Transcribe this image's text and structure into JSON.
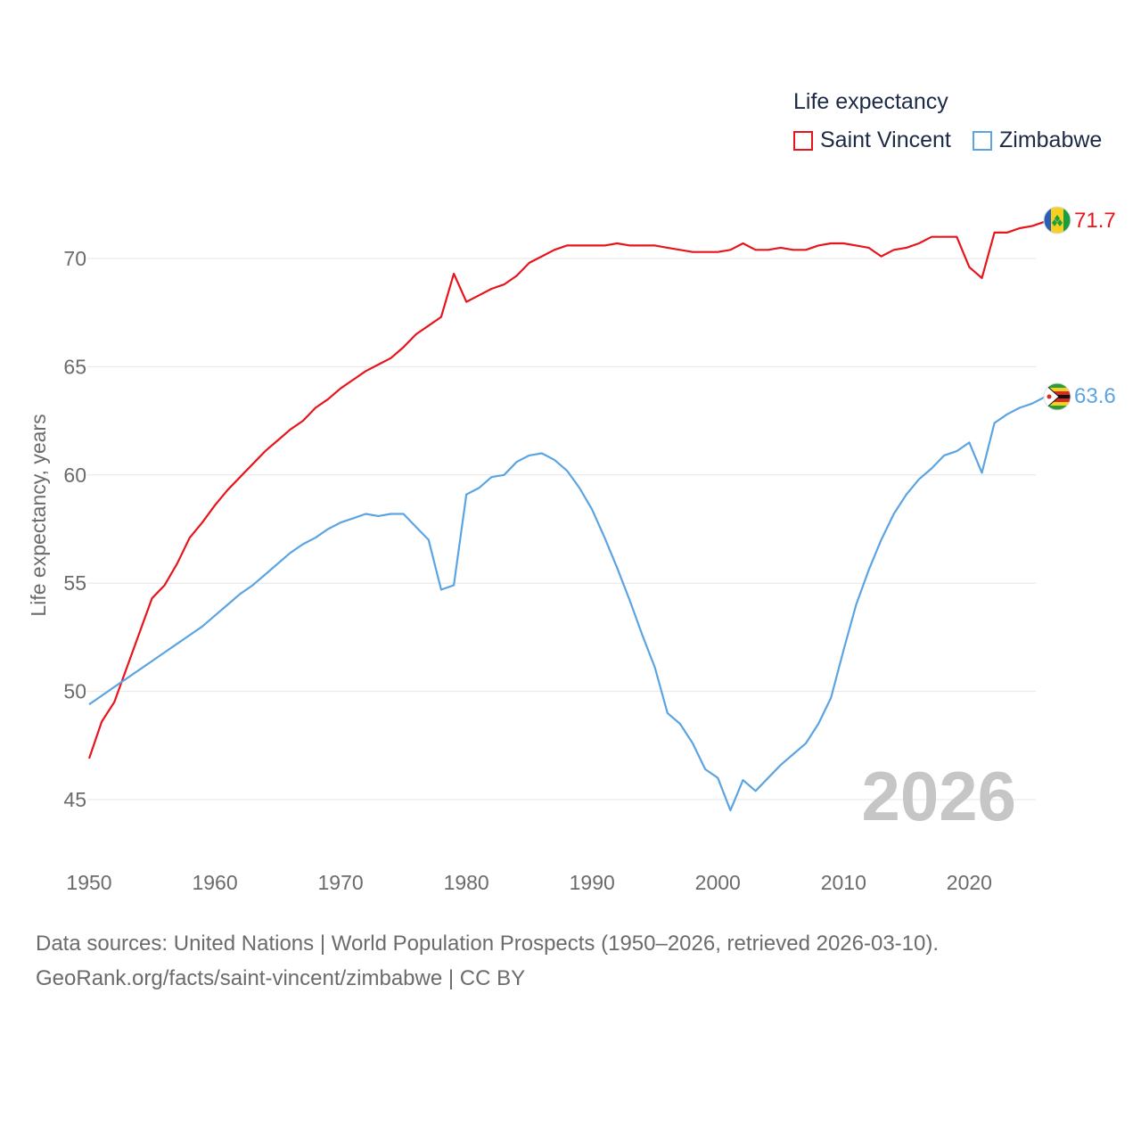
{
  "legend": {
    "title": "Life expectancy",
    "entries": [
      {
        "label": "Saint Vincent",
        "color": "#e8141b"
      },
      {
        "label": "Zimbabwe",
        "color": "#5ba4e3"
      }
    ]
  },
  "year_watermark": "2026",
  "end_labels": {
    "saint_vincent": "71.7",
    "zimbabwe": "63.6"
  },
  "footer": {
    "line1": "Data sources: United Nations | World Population Prospects (1950–2026, retrieved 2026-03-10).",
    "line2": "GeoRank.org/facts/saint-vincent/zimbabwe | CC BY"
  },
  "chart_data": {
    "type": "line",
    "title": "Life expectancy",
    "xlabel": "",
    "ylabel": "Life expectancy, years",
    "xlim": [
      1950,
      2026
    ],
    "ylim": [
      44,
      72.5
    ],
    "x_ticks": [
      1950,
      1960,
      1970,
      1980,
      1990,
      2000,
      2010,
      2020
    ],
    "y_ticks": [
      45,
      50,
      55,
      60,
      65,
      70
    ],
    "grid": true,
    "x": [
      1950,
      1951,
      1952,
      1953,
      1954,
      1955,
      1956,
      1957,
      1958,
      1959,
      1960,
      1961,
      1962,
      1963,
      1964,
      1965,
      1966,
      1967,
      1968,
      1969,
      1970,
      1971,
      1972,
      1973,
      1974,
      1975,
      1976,
      1977,
      1978,
      1979,
      1980,
      1981,
      1982,
      1983,
      1984,
      1985,
      1986,
      1987,
      1988,
      1989,
      1990,
      1991,
      1992,
      1993,
      1994,
      1995,
      1996,
      1997,
      1998,
      1999,
      2000,
      2001,
      2002,
      2003,
      2004,
      2005,
      2006,
      2007,
      2008,
      2009,
      2010,
      2011,
      2012,
      2013,
      2014,
      2015,
      2016,
      2017,
      2018,
      2019,
      2020,
      2021,
      2022,
      2023,
      2024,
      2025,
      2026
    ],
    "series": [
      {
        "name": "Saint Vincent",
        "color": "#e8141b",
        "values": [
          46.9,
          48.6,
          49.5,
          51.1,
          52.7,
          54.3,
          54.9,
          55.9,
          57.1,
          57.8,
          58.6,
          59.3,
          59.9,
          60.5,
          61.1,
          61.6,
          62.1,
          62.5,
          63.1,
          63.5,
          64.0,
          64.4,
          64.8,
          65.1,
          65.4,
          65.9,
          66.5,
          66.9,
          67.3,
          69.3,
          68.0,
          68.3,
          68.6,
          68.8,
          69.2,
          69.8,
          70.1,
          70.4,
          70.6,
          70.6,
          70.6,
          70.6,
          70.7,
          70.6,
          70.6,
          70.6,
          70.5,
          70.4,
          70.3,
          70.3,
          70.3,
          70.4,
          70.7,
          70.4,
          70.4,
          70.5,
          70.4,
          70.4,
          70.6,
          70.7,
          70.7,
          70.6,
          70.5,
          70.1,
          70.4,
          70.5,
          70.7,
          71.0,
          71.0,
          71.0,
          69.6,
          69.1,
          71.2,
          71.2,
          71.4,
          71.5,
          71.7
        ]
      },
      {
        "name": "Zimbabwe",
        "color": "#5ba4e3",
        "values": [
          49.4,
          49.8,
          50.2,
          50.6,
          51.0,
          51.4,
          51.8,
          52.2,
          52.6,
          53.0,
          53.5,
          54.0,
          54.5,
          54.9,
          55.4,
          55.9,
          56.4,
          56.8,
          57.1,
          57.5,
          57.8,
          58.0,
          58.2,
          58.1,
          58.2,
          58.2,
          57.6,
          57.0,
          54.7,
          54.9,
          59.1,
          59.4,
          59.9,
          60.0,
          60.6,
          60.9,
          61.0,
          60.7,
          60.2,
          59.4,
          58.4,
          57.1,
          55.7,
          54.2,
          52.6,
          51.1,
          49.0,
          48.5,
          47.6,
          46.4,
          46.0,
          44.5,
          45.9,
          45.4,
          46.0,
          46.6,
          47.1,
          47.6,
          48.5,
          49.7,
          51.9,
          54.0,
          55.6,
          57.0,
          58.2,
          59.1,
          59.8,
          60.3,
          60.9,
          61.1,
          61.5,
          60.1,
          62.4,
          62.8,
          63.1,
          63.3,
          63.6
        ]
      }
    ]
  }
}
